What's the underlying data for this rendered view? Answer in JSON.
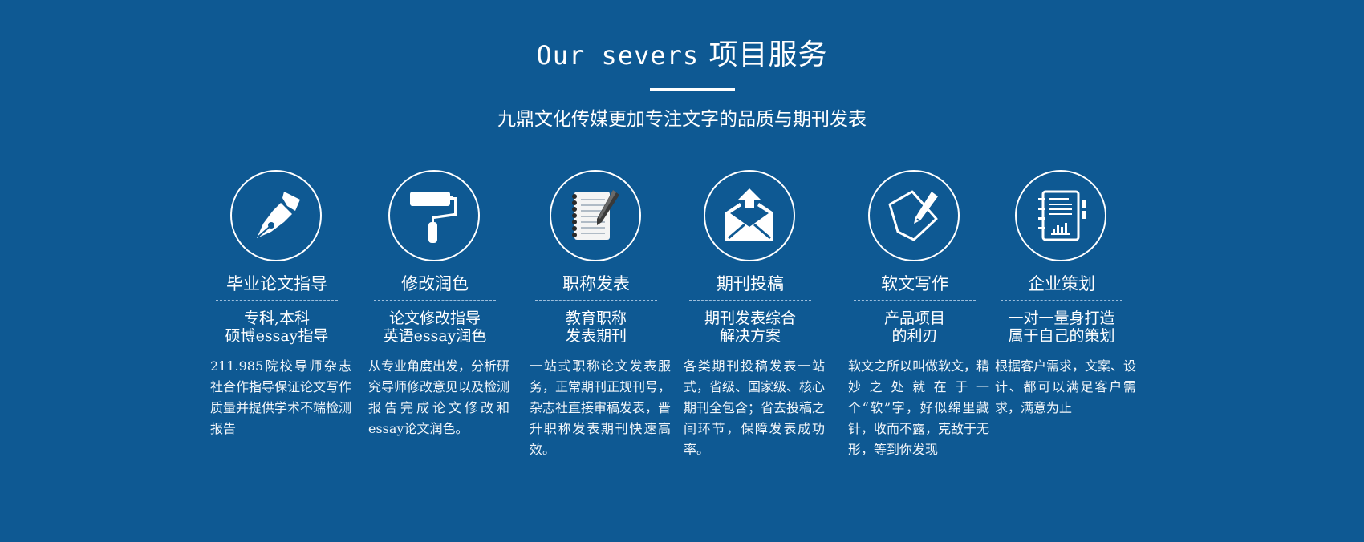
{
  "header": {
    "title_en": "Our severs",
    "title_cn": "项目服务",
    "subtitle": "九鼎文化传媒更加专注文字的品质与期刊发表"
  },
  "services": [
    {
      "title": "毕业论文指导",
      "tagline": [
        "专科,本科",
        "硕博essay指导"
      ],
      "description": "211.985院校导师杂志社合作指导保证论文写作质量并提供学术不端检测报告",
      "icon": "fountain-pen-icon"
    },
    {
      "title": "修改润色",
      "tagline": [
        "论文修改指导",
        "英语essay润色"
      ],
      "description": "从专业角度出发，分析研究导师修改意见以及检测报告完成论文修改和essay论文润色。",
      "icon": "paint-roller-icon"
    },
    {
      "title": "职称发表",
      "tagline": [
        "教育职称",
        "发表期刊"
      ],
      "description": "一站式职称论文发表服务，正常期刊正规刊号，杂志社直接审稿发表，晋升职称发表期刊快速高效。",
      "icon": "notepad-pen-icon"
    },
    {
      "title": "期刊投稿",
      "tagline": [
        "期刊发表综合",
        "解决方案"
      ],
      "description": "各类期刊投稿发表一站式，省级、国家级、核心期刊全包含；省去投稿之间环节，保障发表成功率。",
      "icon": "mail-upload-icon"
    },
    {
      "title": "软文写作",
      "tagline": [
        "产品项目",
        "的利刃"
      ],
      "description": "软文之所以叫做软文，精妙之处就在于一个“软”字，好似绵里藏针，收而不露，克敌于无形，等到你发现",
      "icon": "document-pencil-icon"
    },
    {
      "title": "企业策划",
      "tagline": [
        "一对一量身打造",
        "属于自己的策划"
      ],
      "description": "根据客户需求，文案、设计、都可以满足客户需求，满意为止",
      "icon": "report-notebook-icon"
    }
  ]
}
